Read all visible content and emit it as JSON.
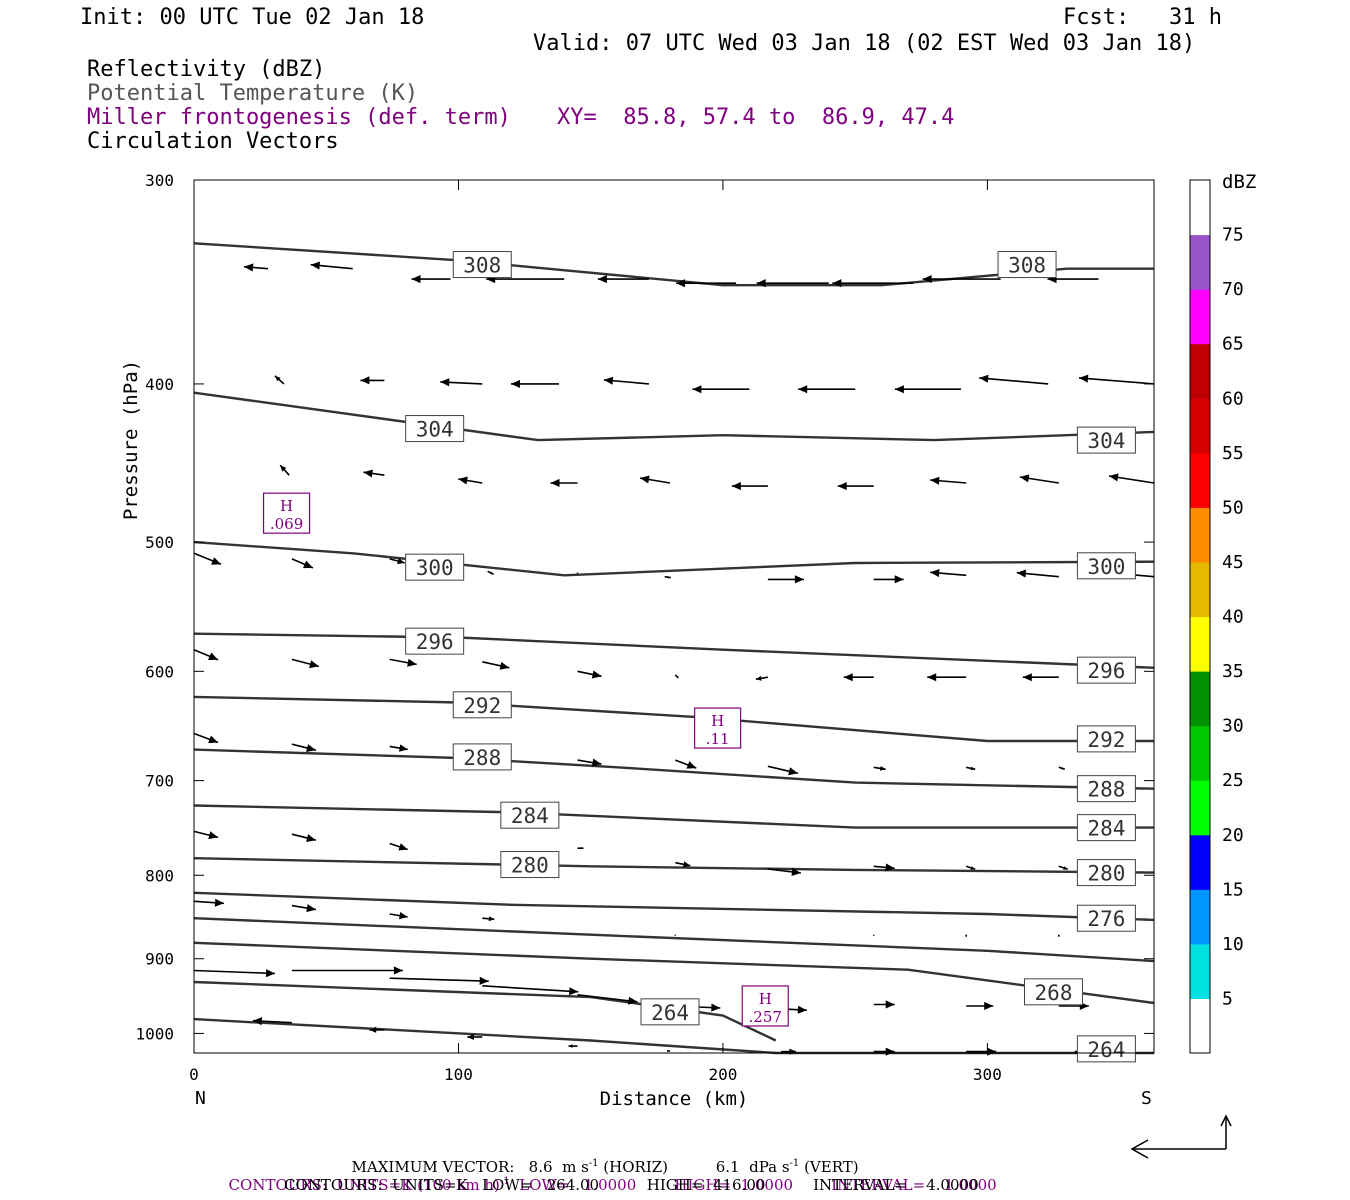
{
  "header": {
    "init": "Init: 00 UTC Tue 02 Jan 18",
    "fcst": "Fcst:   31 h",
    "valid": "Valid: 07 UTC Wed 03 Jan 18 (02 EST Wed 03 Jan 18)"
  },
  "fields": {
    "reflectivity": "Reflectivity (dBZ)",
    "theta": "Potential Temperature (K)",
    "miller": "Miller frontogenesis (def. term)",
    "xy": "XY=  85.8, 57.4 to  86.9, 47.4",
    "circulation": "Circulation Vectors"
  },
  "colors": {
    "contour": "#333333",
    "purple": "#800080",
    "black": "#000000"
  },
  "chart_data": {
    "type": "line",
    "xlabel": "Distance (km)",
    "ylabel": "Pressure (hPa)",
    "xlim": [
      0,
      363
    ],
    "ylim": [
      1028,
      300
    ],
    "y_scale": "log-pressure",
    "x_ticks": [
      0,
      100,
      200,
      300
    ],
    "y_ticks": [
      300,
      400,
      500,
      600,
      700,
      800,
      900,
      1000
    ],
    "x_end_labels": {
      "left": "N",
      "right": "S"
    },
    "isentropes": [
      {
        "theta": "308",
        "points": [
          [
            0,
            328
          ],
          [
            100,
            336
          ],
          [
            200,
            348
          ],
          [
            260,
            348
          ],
          [
            330,
            340
          ],
          [
            363,
            340
          ]
        ],
        "labels": [
          [
            109,
            338
          ],
          [
            315,
            338
          ]
        ]
      },
      {
        "theta": "304",
        "points": [
          [
            0,
            405
          ],
          [
            130,
            433
          ],
          [
            200,
            430
          ],
          [
            280,
            433
          ],
          [
            363,
            428
          ]
        ],
        "labels": [
          [
            91,
            426
          ],
          [
            345,
            433
          ]
        ]
      },
      {
        "theta": "300",
        "points": [
          [
            0,
            500
          ],
          [
            60,
            508
          ],
          [
            140,
            524
          ],
          [
            250,
            515
          ],
          [
            363,
            514
          ]
        ],
        "labels": [
          [
            91,
            518
          ],
          [
            345,
            517
          ]
        ]
      },
      {
        "theta": "296",
        "points": [
          [
            0,
            569
          ],
          [
            100,
            572
          ],
          [
            200,
            582
          ],
          [
            363,
            597
          ]
        ],
        "labels": [
          [
            91,
            575
          ],
          [
            345,
            599
          ]
        ]
      },
      {
        "theta": "292",
        "points": [
          [
            0,
            622
          ],
          [
            100,
            627
          ],
          [
            190,
            640
          ],
          [
            300,
            662
          ],
          [
            363,
            662
          ]
        ],
        "labels": [
          [
            109,
            629
          ],
          [
            345,
            660
          ]
        ]
      },
      {
        "theta": "288",
        "points": [
          [
            0,
            670
          ],
          [
            100,
            678
          ],
          [
            160,
            687
          ],
          [
            250,
            702
          ],
          [
            363,
            708
          ]
        ],
        "labels": [
          [
            109,
            677
          ],
          [
            345,
            708
          ]
        ]
      },
      {
        "theta": "284",
        "points": [
          [
            0,
            725
          ],
          [
            120,
            732
          ],
          [
            250,
            748
          ],
          [
            363,
            748
          ]
        ],
        "labels": [
          [
            127,
            735
          ],
          [
            345,
            748
          ]
        ]
      },
      {
        "theta": "280",
        "points": [
          [
            0,
            781
          ],
          [
            150,
            790
          ],
          [
            250,
            794
          ],
          [
            363,
            797
          ]
        ],
        "labels": [
          [
            127,
            788
          ],
          [
            345,
            797
          ]
        ]
      },
      {
        "theta": "276",
        "points": [
          [
            0,
            820
          ],
          [
            120,
            834
          ],
          [
            300,
            845
          ],
          [
            363,
            852
          ]
        ],
        "labels": [
          [
            345,
            850
          ]
        ]
      },
      {
        "theta": "",
        "points": [
          [
            0,
            850
          ],
          [
            150,
            870
          ],
          [
            300,
            890
          ],
          [
            363,
            903
          ]
        ],
        "labels": []
      },
      {
        "theta": "",
        "points": [
          [
            0,
            880
          ],
          [
            150,
            900
          ],
          [
            270,
            914
          ],
          [
            363,
            958
          ]
        ],
        "labels": []
      },
      {
        "theta": "268",
        "points": [
          [
            0,
            930
          ],
          [
            150,
            950
          ],
          [
            200,
            975
          ],
          [
            220,
            1010
          ]
        ],
        "labels": [
          [
            325,
            943
          ]
        ]
      },
      {
        "theta": "264",
        "points": [
          [
            0,
            980
          ],
          [
            150,
            1010
          ],
          [
            220,
            1028
          ],
          [
            363,
            1028
          ]
        ],
        "labels": [
          [
            180,
            970
          ],
          [
            345,
            1022
          ]
        ]
      }
    ],
    "frontogenesis_maxima": [
      {
        "label": "H",
        "value": ".069",
        "x": 35,
        "p": 480
      },
      {
        "label": "H",
        "value": ".11",
        "x": 198,
        "p": 650
      },
      {
        "label": "H",
        "value": ".257",
        "x": 216,
        "p": 962
      }
    ],
    "vectors": [
      [
        [
          28,
          340
        ],
        [
          -8,
          -2
        ]
      ],
      [
        [
          60,
          340
        ],
        [
          -14,
          -4
        ]
      ],
      [
        [
          97,
          345
        ],
        [
          -13,
          0
        ]
      ],
      [
        [
          140,
          345
        ],
        [
          -26,
          0
        ]
      ],
      [
        [
          172,
          345
        ],
        [
          -17,
          0
        ]
      ],
      [
        [
          205,
          347
        ],
        [
          -20,
          0
        ]
      ],
      [
        [
          240,
          347
        ],
        [
          -24,
          0
        ]
      ],
      [
        [
          272,
          347
        ],
        [
          -27,
          0
        ]
      ],
      [
        [
          305,
          345
        ],
        [
          -26,
          0
        ]
      ],
      [
        [
          342,
          345
        ],
        [
          -17,
          0
        ]
      ],
      [
        [
          34,
          400
        ],
        [
          -3,
          -8
        ]
      ],
      [
        [
          72,
          398
        ],
        [
          -8,
          0
        ]
      ],
      [
        [
          109,
          400
        ],
        [
          -14,
          -2
        ]
      ],
      [
        [
          138,
          400
        ],
        [
          -16,
          0
        ]
      ],
      [
        [
          172,
          400
        ],
        [
          -15,
          -4
        ]
      ],
      [
        [
          210,
          403
        ],
        [
          -19,
          0
        ]
      ],
      [
        [
          250,
          403
        ],
        [
          -19,
          0
        ]
      ],
      [
        [
          290,
          403
        ],
        [
          -22,
          0
        ]
      ],
      [
        [
          323,
          400
        ],
        [
          -23,
          -6
        ]
      ],
      [
        [
          363,
          400
        ],
        [
          -25,
          -6
        ]
      ],
      [
        [
          36,
          455
        ],
        [
          -3,
          -10
        ]
      ],
      [
        [
          72,
          455
        ],
        [
          -7,
          -3
        ]
      ],
      [
        [
          109,
          460
        ],
        [
          -8,
          -4
        ]
      ],
      [
        [
          145,
          460
        ],
        [
          -9,
          0
        ]
      ],
      [
        [
          180,
          460
        ],
        [
          -10,
          -5
        ]
      ],
      [
        [
          217,
          462
        ],
        [
          -12,
          0
        ]
      ],
      [
        [
          257,
          462
        ],
        [
          -12,
          0
        ]
      ],
      [
        [
          292,
          460
        ],
        [
          -12,
          -3
        ]
      ],
      [
        [
          327,
          460
        ],
        [
          -13,
          -6
        ]
      ],
      [
        [
          363,
          460
        ],
        [
          -15,
          -7
        ]
      ],
      [
        [
          0,
          508
        ],
        [
          9,
          11
        ]
      ],
      [
        [
          37,
          512
        ],
        [
          7,
          9
        ]
      ],
      [
        [
          74,
          512
        ],
        [
          5,
          4
        ]
      ],
      [
        [
          111,
          521
        ],
        [
          2,
          3
        ]
      ],
      [
        [
          145,
          522
        ],
        [
          0,
          1
        ]
      ],
      [
        [
          178,
          525
        ],
        [
          2,
          1
        ]
      ],
      [
        [
          217,
          527
        ],
        [
          12,
          0
        ]
      ],
      [
        [
          257,
          527
        ],
        [
          10,
          0
        ]
      ],
      [
        [
          292,
          524
        ],
        [
          -12,
          -3
        ]
      ],
      [
        [
          327,
          525
        ],
        [
          -14,
          -4
        ]
      ],
      [
        [
          363,
          525
        ],
        [
          -15,
          -4
        ]
      ],
      [
        [
          0,
          582
        ],
        [
          8,
          10
        ]
      ],
      [
        [
          37,
          590
        ],
        [
          9,
          7
        ]
      ],
      [
        [
          74,
          590
        ],
        [
          9,
          5
        ]
      ],
      [
        [
          109,
          592
        ],
        [
          9,
          6
        ]
      ],
      [
        [
          145,
          600
        ],
        [
          8,
          5
        ]
      ],
      [
        [
          182,
          603
        ],
        [
          1,
          3
        ]
      ],
      [
        [
          217,
          605
        ],
        [
          -4,
          2
        ]
      ],
      [
        [
          257,
          605
        ],
        [
          -10,
          0
        ]
      ],
      [
        [
          292,
          605
        ],
        [
          -13,
          0
        ]
      ],
      [
        [
          327,
          605
        ],
        [
          -12,
          0
        ]
      ],
      [
        [
          0,
          655
        ],
        [
          8,
          9
        ]
      ],
      [
        [
          37,
          665
        ],
        [
          8,
          6
        ]
      ],
      [
        [
          74,
          667
        ],
        [
          6,
          3
        ]
      ],
      [
        [
          109,
          667
        ],
        [
          6,
          5
        ]
      ],
      [
        [
          145,
          680
        ],
        [
          8,
          4
        ]
      ],
      [
        [
          182,
          680
        ],
        [
          7,
          8
        ]
      ],
      [
        [
          217,
          686
        ],
        [
          10,
          7
        ]
      ],
      [
        [
          257,
          687
        ],
        [
          4,
          2
        ]
      ],
      [
        [
          292,
          687
        ],
        [
          3,
          2
        ]
      ],
      [
        [
          327,
          687
        ],
        [
          2,
          2
        ]
      ],
      [
        [
          0,
          752
        ],
        [
          8,
          6
        ]
      ],
      [
        [
          37,
          755
        ],
        [
          8,
          6
        ]
      ],
      [
        [
          74,
          765
        ],
        [
          6,
          6
        ]
      ],
      [
        [
          145,
          770
        ],
        [
          2,
          0
        ]
      ],
      [
        [
          182,
          786
        ],
        [
          5,
          3
        ]
      ],
      [
        [
          217,
          793
        ],
        [
          11,
          4
        ]
      ],
      [
        [
          257,
          790
        ],
        [
          7,
          2
        ]
      ],
      [
        [
          292,
          790
        ],
        [
          3,
          3
        ]
      ],
      [
        [
          327,
          790
        ],
        [
          3,
          3
        ]
      ],
      [
        [
          0,
          830
        ],
        [
          10,
          2
        ]
      ],
      [
        [
          37,
          835
        ],
        [
          8,
          4
        ]
      ],
      [
        [
          74,
          845
        ],
        [
          6,
          3
        ]
      ],
      [
        [
          109,
          850
        ],
        [
          4,
          1
        ]
      ],
      [
        [
          182,
          870
        ],
        [
          0,
          1
        ]
      ],
      [
        [
          217,
          870
        ],
        [
          0,
          0
        ]
      ],
      [
        [
          257,
          870
        ],
        [
          0,
          1
        ]
      ],
      [
        [
          292,
          870
        ],
        [
          0,
          2
        ]
      ],
      [
        [
          327,
          870
        ],
        [
          0,
          2
        ]
      ],
      [
        [
          0,
          915
        ],
        [
          27,
          3
        ]
      ],
      [
        [
          37,
          915
        ],
        [
          37,
          0
        ]
      ],
      [
        [
          74,
          925
        ],
        [
          33,
          3
        ]
      ],
      [
        [
          109,
          935
        ],
        [
          32,
          6
        ]
      ],
      [
        [
          145,
          947
        ],
        [
          20,
          7
        ]
      ],
      [
        [
          182,
          962
        ],
        [
          15,
          2
        ]
      ],
      [
        [
          217,
          965
        ],
        [
          13,
          2
        ]
      ],
      [
        [
          257,
          960
        ],
        [
          7,
          0
        ]
      ],
      [
        [
          292,
          962
        ],
        [
          9,
          0
        ]
      ],
      [
        [
          327,
          962
        ],
        [
          10,
          0
        ]
      ],
      [
        [
          37,
          985
        ],
        [
          -13,
          -2
        ]
      ],
      [
        [
          72,
          995
        ],
        [
          -5,
          0
        ]
      ],
      [
        [
          109,
          1005
        ],
        [
          -5,
          0
        ]
      ],
      [
        [
          145,
          1018
        ],
        [
          -3,
          0
        ]
      ],
      [
        [
          180,
          1025
        ],
        [
          -1,
          0
        ]
      ],
      [
        [
          222,
          1026
        ],
        [
          5,
          0
        ]
      ],
      [
        [
          257,
          1026
        ],
        [
          7,
          0
        ]
      ],
      [
        [
          292,
          1026
        ],
        [
          10,
          0
        ]
      ],
      [
        [
          333,
          1026
        ],
        [
          10,
          0
        ]
      ]
    ]
  },
  "colorbar": {
    "unit": "dBZ",
    "labels": [
      "5",
      "10",
      "15",
      "20",
      "25",
      "30",
      "35",
      "40",
      "45",
      "50",
      "55",
      "60",
      "65",
      "70",
      "75"
    ],
    "bins": [
      "#ffffff",
      "#00e0e0",
      "#0096ff",
      "#0000ff",
      "#00ff00",
      "#00c800",
      "#009100",
      "#ffff00",
      "#e6b800",
      "#ff8c00",
      "#ff0000",
      "#d60000",
      "#c00000",
      "#ff00ff",
      "#9955cc",
      "#ffffff"
    ]
  },
  "footer": {
    "max_vector": "MAXIMUM VECTOR:   8.6  m s",
    "max_vector_horiz": "(HORIZ)",
    "max_vector_vert_val": "6.1  dPa s",
    "max_vector_vert": "(VERT)",
    "contours1": "CONTOURS:  UNITS=K (100 km h)",
    "contours1_rest": "  LOW=   1.0000        HIGH=  1.0000        INTERVAL=    1.0000",
    "contours2": "CONTOURS:  UNITS=K   LOW=   264.00          HIGH=  416.00          INTERVAL=    4.0000"
  }
}
